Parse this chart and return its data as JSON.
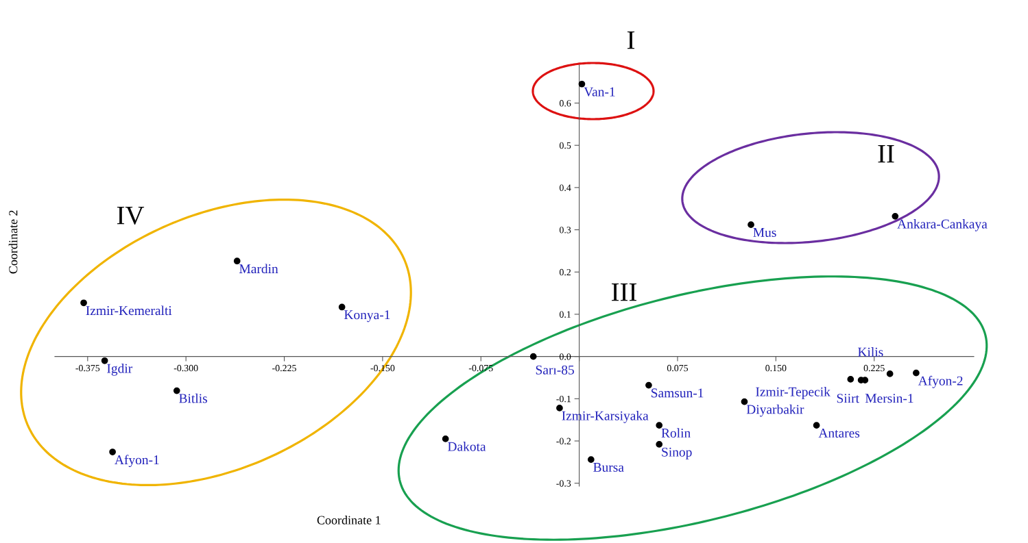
{
  "chart_data": {
    "type": "scatter",
    "xlabel": "Coordinate 1",
    "ylabel": "Coordinate 2",
    "xlim": [
      -0.4,
      0.301
    ],
    "ylim": [
      -0.307,
      0.69
    ],
    "xticks": [
      -0.375,
      {
        "value": -0.3,
        "label": "-0.300"
      },
      -0.225,
      {
        "value": -0.15,
        "label": "-0.150"
      },
      -0.075,
      {
        "value": 0,
        "label": null
      },
      0.075,
      {
        "value": 0.15,
        "label": "0.150"
      },
      0.225
    ],
    "yticks": [
      -0.3,
      -0.2,
      -0.1,
      {
        "value": 0,
        "label": "0.0"
      },
      0.1,
      0.2,
      0.3,
      0.4,
      0.5,
      0.6
    ],
    "grid": false,
    "legend": false,
    "marker": "circle",
    "series": [
      {
        "color": "#000000",
        "x": [
          0.002,
          0.131,
          0.241,
          -0.261,
          -0.378,
          -0.181,
          -0.362,
          -0.307,
          -0.356,
          -0.102,
          -0.035,
          -0.015,
          0.009,
          0.053,
          0.061,
          0.061,
          0.126,
          0.181,
          0.207,
          0.215,
          0.218,
          0.237,
          0.257
        ],
        "values": [
          0.645,
          0.312,
          0.332,
          0.226,
          0.127,
          0.117,
          -0.01,
          -0.081,
          -0.226,
          -0.195,
          0.0,
          -0.122,
          -0.244,
          -0.068,
          -0.163,
          -0.208,
          -0.107,
          -0.163,
          -0.054,
          -0.056,
          -0.056,
          -0.041,
          -0.039
        ]
      }
    ],
    "annotations": [
      {
        "text": "Van-1",
        "x": 0.002,
        "y": 0.645
      },
      {
        "text": "Mus",
        "x": 0.131,
        "y": 0.312
      },
      {
        "text": "Ankara-Cankaya",
        "x": 0.241,
        "y": 0.332
      },
      {
        "text": "Mardin",
        "x": -0.261,
        "y": 0.226
      },
      {
        "text": "Izmir-Kemeralti",
        "x": -0.378,
        "y": 0.127
      },
      {
        "text": "Konya-1",
        "x": -0.181,
        "y": 0.117
      },
      {
        "text": "Igdir",
        "x": -0.362,
        "y": -0.01
      },
      {
        "text": "Bitlis",
        "x": -0.307,
        "y": -0.081
      },
      {
        "text": "Afyon-1",
        "x": -0.356,
        "y": -0.226
      },
      {
        "text": "Dakota",
        "x": -0.102,
        "y": -0.195
      },
      {
        "text": "Sarı-85",
        "x": -0.035,
        "y": 0.0
      },
      {
        "text": "Izmir-Karsiyaka",
        "x": -0.015,
        "y": -0.122
      },
      {
        "text": "Bursa",
        "x": 0.009,
        "y": -0.244
      },
      {
        "text": "Samsun-1",
        "x": 0.053,
        "y": -0.068
      },
      {
        "text": "Rolin",
        "x": 0.061,
        "y": -0.163
      },
      {
        "text": "Sinop",
        "x": 0.061,
        "y": -0.208
      },
      {
        "text": "Diyarbakir",
        "x": 0.126,
        "y": -0.107
      },
      {
        "text": "Antares",
        "x": 0.181,
        "y": -0.163
      },
      {
        "text": "Izmir-Tepecik",
        "x": 0.207,
        "y": -0.054
      },
      {
        "text": "Siirt",
        "x": 0.215,
        "y": -0.056
      },
      {
        "text": "Mersin-1",
        "x": 0.218,
        "y": -0.056
      },
      {
        "text": "Kilis",
        "x": 0.237,
        "y": -0.041
      },
      {
        "text": "Afyon-2",
        "x": 0.257,
        "y": -0.039
      },
      "I",
      "II",
      "III",
      "IV"
    ]
  }
}
